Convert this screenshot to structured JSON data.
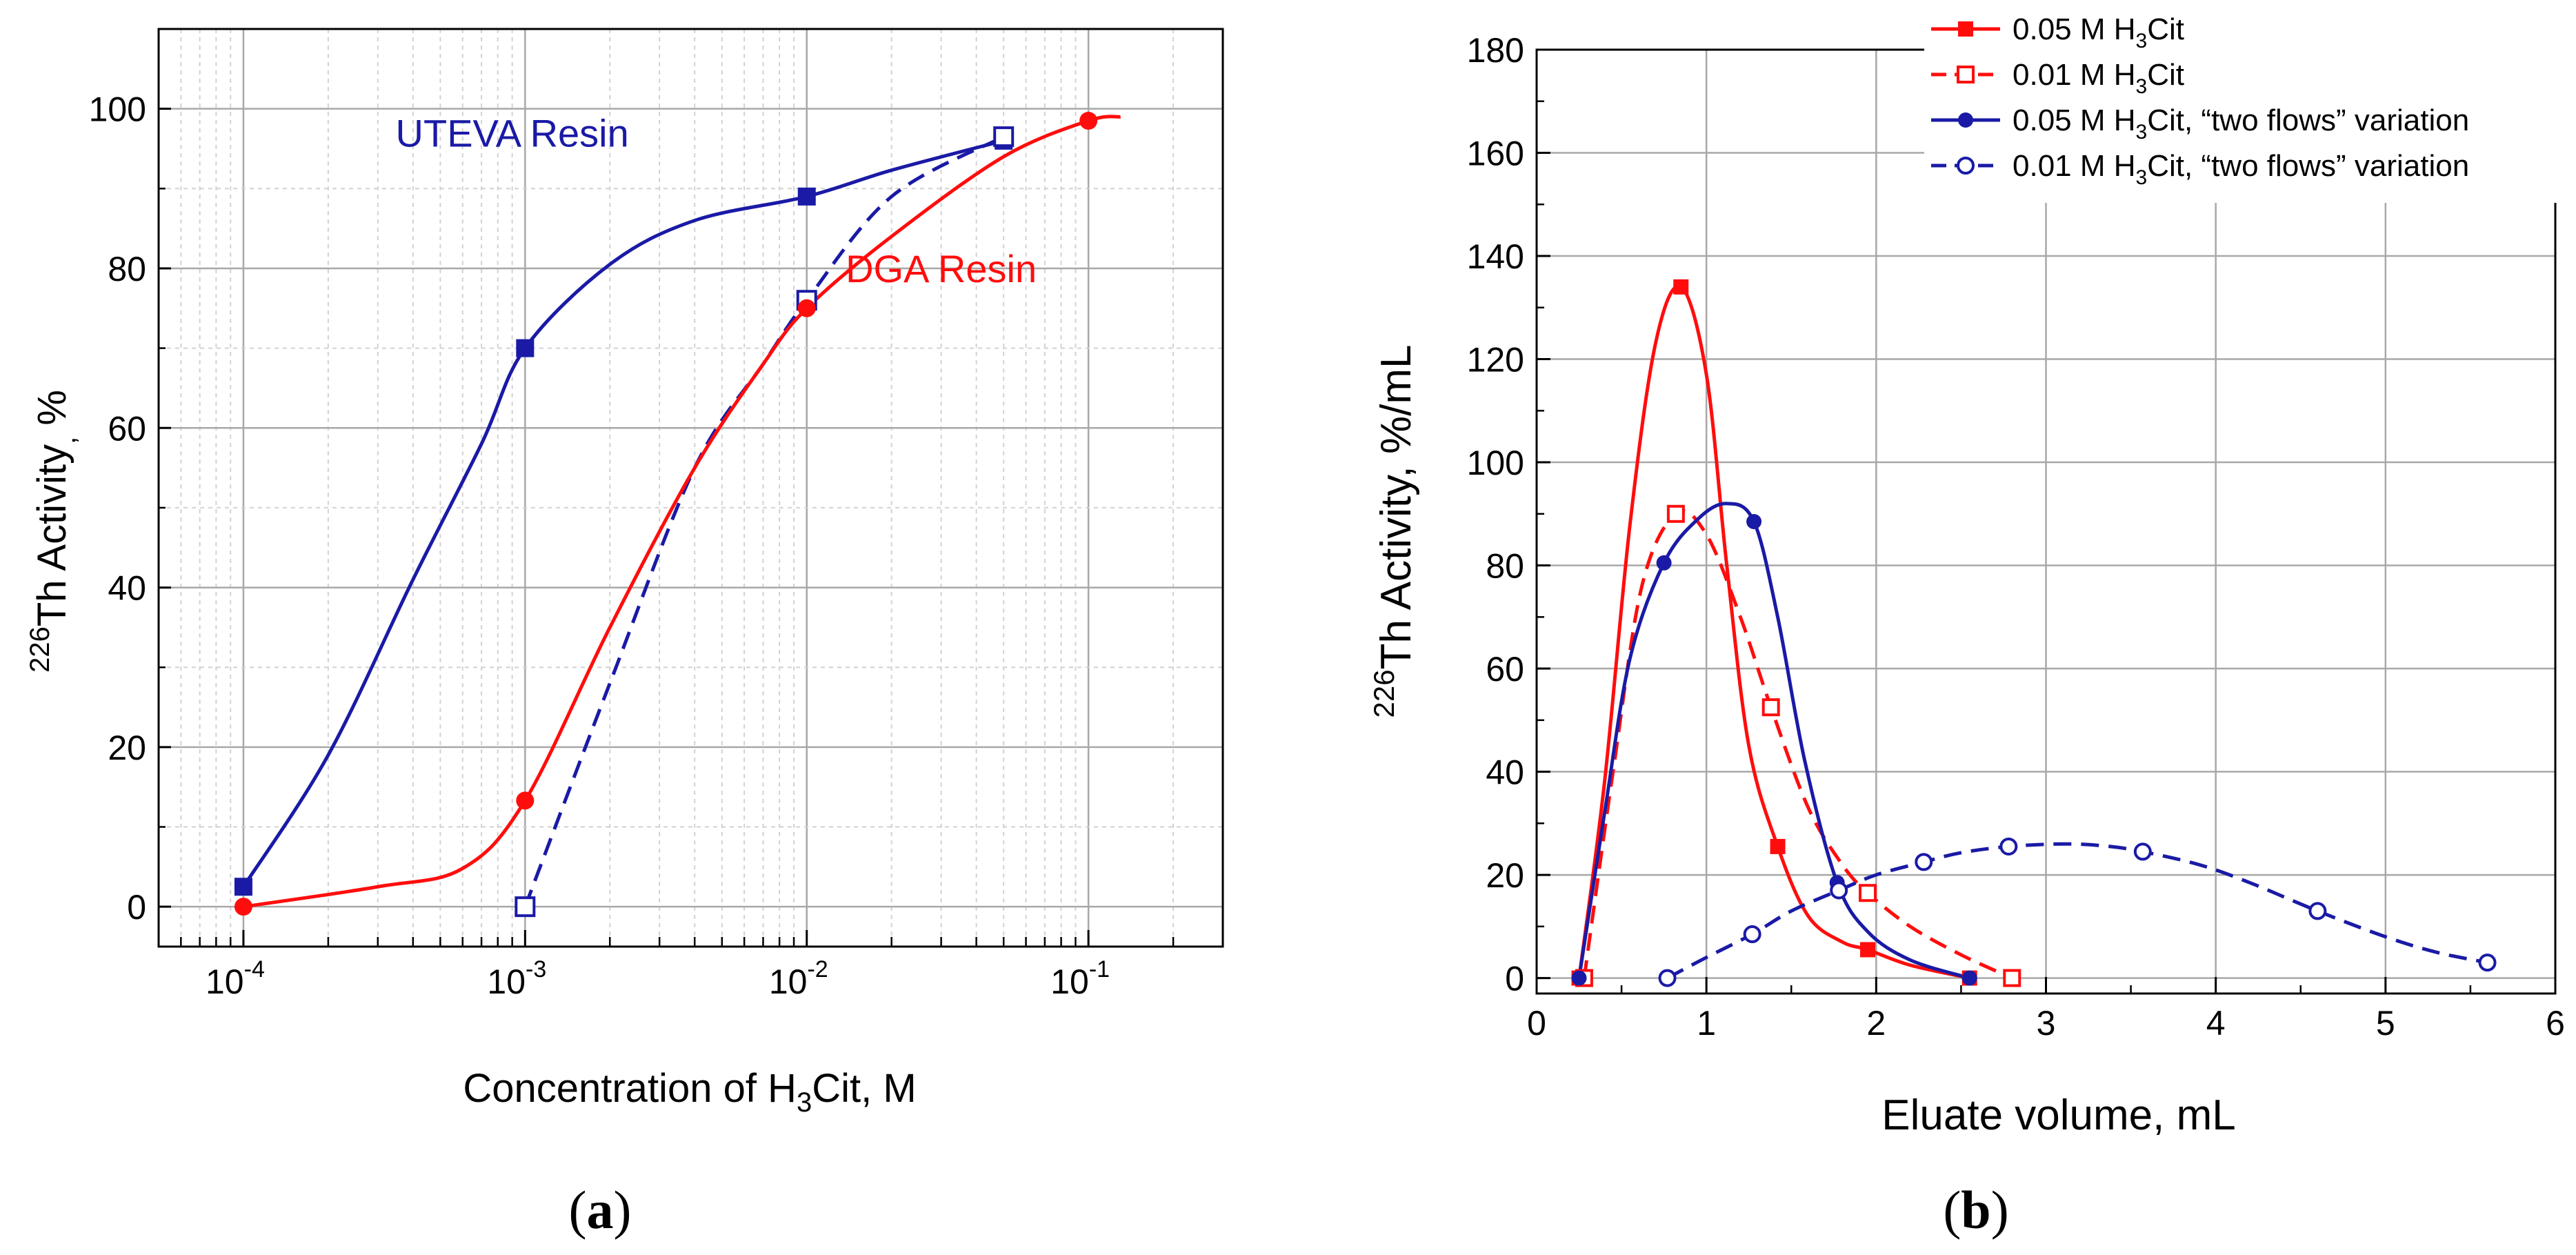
{
  "chart_data": [
    {
      "type": "line",
      "panel_label_open": "(",
      "panel_label_letter": "a",
      "panel_label_close": ")",
      "xscale": "log",
      "xlim": [
        5e-05,
        0.3
      ],
      "ylim": [
        -5,
        110
      ],
      "x_ticks": [
        {
          "value": 0.0001,
          "base": "10",
          "exp": "-4"
        },
        {
          "value": 0.001,
          "base": "10",
          "exp": "-3"
        },
        {
          "value": 0.01,
          "base": "10",
          "exp": "-2"
        },
        {
          "value": 0.1,
          "base": "10",
          "exp": "-1"
        }
      ],
      "y_ticks": [
        "0",
        "20",
        "40",
        "60",
        "80",
        "100"
      ],
      "xlabel": {
        "pre": "Concentration of H",
        "sub": "3",
        "post": "Cit, M"
      },
      "ylabel": {
        "sup": "226",
        "main": "Th Activity",
        "sub": ",",
        "post": " %"
      },
      "grid": true,
      "annotations": [
        {
          "text": "UTEVA Resin",
          "color": "#1a1aa6",
          "x": 0.0009,
          "y": 97
        },
        {
          "text": "DGA Resin",
          "color": "#ff0d0d",
          "x": 0.03,
          "y": 80
        }
      ],
      "series": [
        {
          "name": "UTEVA Resin",
          "color": "#1a1aa6",
          "marker": "square-filled",
          "dash": false,
          "x": [
            0.0001,
            0.001,
            0.01,
            0.05
          ],
          "y": [
            2.5,
            70,
            89,
            96
          ]
        },
        {
          "name": "UTEVA Resin (dashed)",
          "color": "#1a1aa6",
          "marker": "square-open",
          "dash": true,
          "x": [
            0.001,
            0.01,
            0.05
          ],
          "y": [
            0,
            76,
            96.5
          ]
        },
        {
          "name": "DGA Resin",
          "color": "#ff0d0d",
          "marker": "circle-filled",
          "dash": false,
          "x": [
            0.0001,
            0.001,
            0.01,
            0.1
          ],
          "y": [
            0,
            13.3,
            75,
            98.5
          ]
        }
      ]
    },
    {
      "type": "line",
      "panel_label_open": "(",
      "panel_label_letter": "b",
      "panel_label_close": ")",
      "xlim": [
        0,
        6
      ],
      "ylim": [
        -3,
        180
      ],
      "x_ticks": [
        "0",
        "1",
        "2",
        "3",
        "4",
        "5",
        "6"
      ],
      "y_ticks": [
        "0",
        "20",
        "40",
        "60",
        "80",
        "100",
        "120",
        "140",
        "160",
        "180"
      ],
      "xlabel": "Eluate volume, mL",
      "ylabel": {
        "sup": "226",
        "main": "Th Activity,  %/mL"
      },
      "grid": true,
      "legend": [
        {
          "pre": "0.05 M H",
          "sub": "3",
          "post": "Cit"
        },
        {
          "pre": "0.01 M H",
          "sub": "3",
          "post": "Cit"
        },
        {
          "pre": "0.05 M H",
          "sub": "3",
          "post": "Cit, “two flows” variation"
        },
        {
          "pre": "0.01 M H",
          "sub": "3",
          "post": "Cit, “two flows” variation"
        }
      ],
      "series": [
        {
          "name": "0.05 M H3Cit",
          "color": "#ff0d0d",
          "marker": "square-filled",
          "dash": false,
          "x": [
            0.25,
            0.85,
            1.42,
            1.95,
            2.55
          ],
          "y": [
            0,
            134,
            25.5,
            5.5,
            0
          ],
          "curve": [
            [
              0.25,
              0
            ],
            [
              0.4,
              38
            ],
            [
              0.55,
              88
            ],
            [
              0.7,
              123
            ],
            [
              0.85,
              134
            ],
            [
              1.0,
              117
            ],
            [
              1.12,
              80
            ],
            [
              1.25,
              45
            ],
            [
              1.42,
              25.5
            ],
            [
              1.6,
              12
            ],
            [
              1.8,
              7
            ],
            [
              1.95,
              5.5
            ],
            [
              2.2,
              2.5
            ],
            [
              2.55,
              0
            ]
          ]
        },
        {
          "name": "0.01 M H3Cit",
          "color": "#ff0d0d",
          "marker": "square-open",
          "dash": true,
          "x": [
            0.28,
            0.82,
            1.38,
            1.95,
            2.8
          ],
          "y": [
            0,
            90,
            52.5,
            16.5,
            0
          ],
          "curve": [
            [
              0.28,
              0
            ],
            [
              0.45,
              40
            ],
            [
              0.62,
              76
            ],
            [
              0.82,
              90
            ],
            [
              1.0,
              86
            ],
            [
              1.2,
              70
            ],
            [
              1.38,
              52.5
            ],
            [
              1.6,
              33
            ],
            [
              1.8,
              22
            ],
            [
              1.95,
              16.5
            ],
            [
              2.2,
              10
            ],
            [
              2.5,
              4.5
            ],
            [
              2.8,
              0
            ]
          ]
        },
        {
          "name": "0.05 M H3Cit, “two flows” variation",
          "color": "#1a1aa6",
          "marker": "circle-filled",
          "dash": false,
          "x": [
            0.25,
            0.75,
            1.28,
            1.77,
            2.55
          ],
          "y": [
            0,
            80.5,
            88.5,
            18.5,
            0
          ],
          "curve": [
            [
              0.25,
              0
            ],
            [
              0.4,
              32
            ],
            [
              0.55,
              62
            ],
            [
              0.75,
              80.5
            ],
            [
              0.95,
              89
            ],
            [
              1.12,
              92
            ],
            [
              1.28,
              88.5
            ],
            [
              1.42,
              70
            ],
            [
              1.58,
              42
            ],
            [
              1.77,
              18.5
            ],
            [
              1.95,
              9
            ],
            [
              2.2,
              3.5
            ],
            [
              2.55,
              0
            ]
          ]
        },
        {
          "name": "0.01 M H3Cit, “two flows” variation",
          "color": "#1a1aa6",
          "marker": "circle-open",
          "dash": true,
          "x": [
            0.77,
            1.27,
            1.78,
            2.28,
            2.78,
            3.57,
            4.6,
            5.6
          ],
          "y": [
            0,
            8.5,
            17,
            22.5,
            25.5,
            24.5,
            13,
            3
          ],
          "curve": [
            [
              0.77,
              0
            ],
            [
              1.0,
              4
            ],
            [
              1.27,
              8.5
            ],
            [
              1.5,
              13
            ],
            [
              1.78,
              17
            ],
            [
              2.0,
              20
            ],
            [
              2.28,
              22.5
            ],
            [
              2.5,
              24.3
            ],
            [
              2.78,
              25.5
            ],
            [
              3.1,
              26
            ],
            [
              3.35,
              25.6
            ],
            [
              3.57,
              24.5
            ],
            [
              3.9,
              22
            ],
            [
              4.2,
              18.5
            ],
            [
              4.6,
              13
            ],
            [
              5.0,
              8
            ],
            [
              5.3,
              5
            ],
            [
              5.6,
              3
            ]
          ]
        }
      ]
    }
  ]
}
